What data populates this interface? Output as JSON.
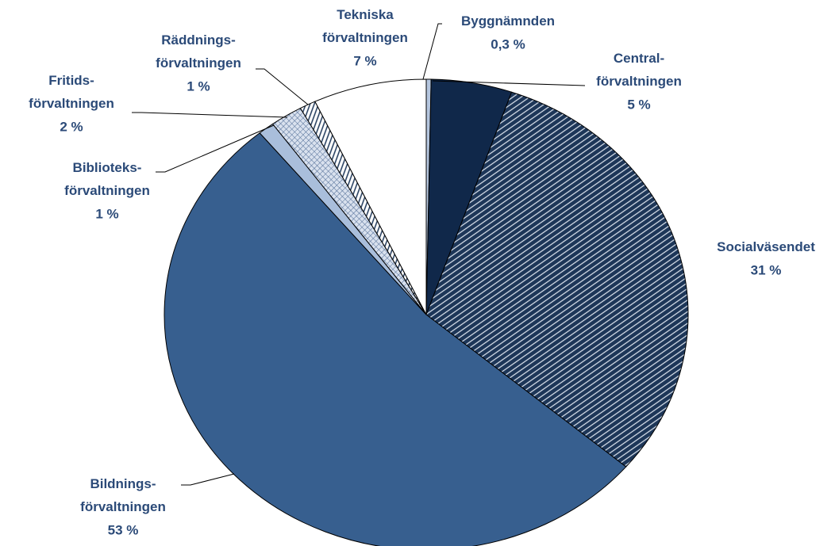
{
  "chart_data": {
    "type": "pie",
    "categories": [
      "Byggnämnden",
      "Central-\nförvaltningen",
      "Socialväsendet",
      "Bildnings-\nförvaltningen",
      "Biblioteks-\nförvaltningen",
      "Fritids-\nförvaltningen",
      "Räddnings-\nförvaltningen",
      "Tekniska\nförvaltningen"
    ],
    "values": [
      0.3,
      5,
      31,
      53,
      1,
      2,
      1,
      7
    ],
    "value_labels": [
      "0,3 %",
      "5 %",
      "31 %",
      "53 %",
      "1 %",
      "2 %",
      "1 %",
      "7 %"
    ],
    "colors": [
      "#b4c5de",
      "#10284a",
      "#1d3658",
      "#375f8f",
      "#a9bedb",
      "#d9e1ee",
      "#ffffff",
      "#ffffff"
    ],
    "patterns": [
      null,
      null,
      "diagonal",
      null,
      null,
      "cross",
      "stripes",
      null
    ]
  }
}
